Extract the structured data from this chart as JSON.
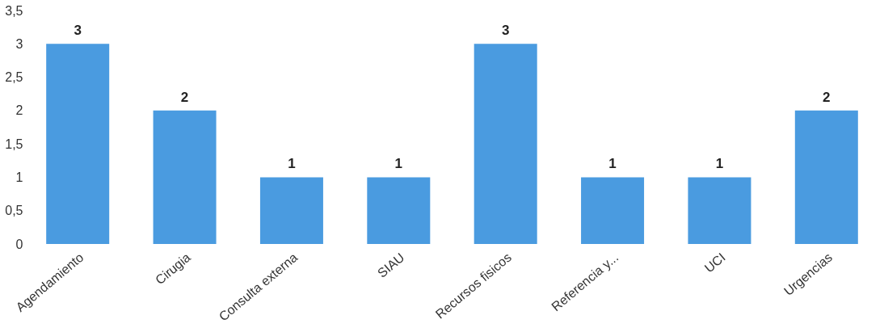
{
  "chart_data": {
    "type": "bar",
    "categories": [
      "Agendamiento",
      "Cirugia",
      "Consulta externa",
      "SIAU",
      "Recursos fisicos",
      "Referencia y...",
      "UCI",
      "Urgencias"
    ],
    "values": [
      3,
      2,
      1,
      1,
      3,
      1,
      1,
      2
    ],
    "color": "#4a9be0",
    "ylim": [
      0,
      3.5
    ],
    "yticks": [
      0,
      {
        "value": 0.5,
        "label": "0,5"
      },
      1,
      {
        "value": 1.5,
        "label": "1,5"
      },
      2,
      {
        "value": 2.5,
        "label": "2,5"
      },
      3,
      {
        "value": 3.5,
        "label": "3,5"
      }
    ],
    "data_labels": true,
    "grid": false
  }
}
